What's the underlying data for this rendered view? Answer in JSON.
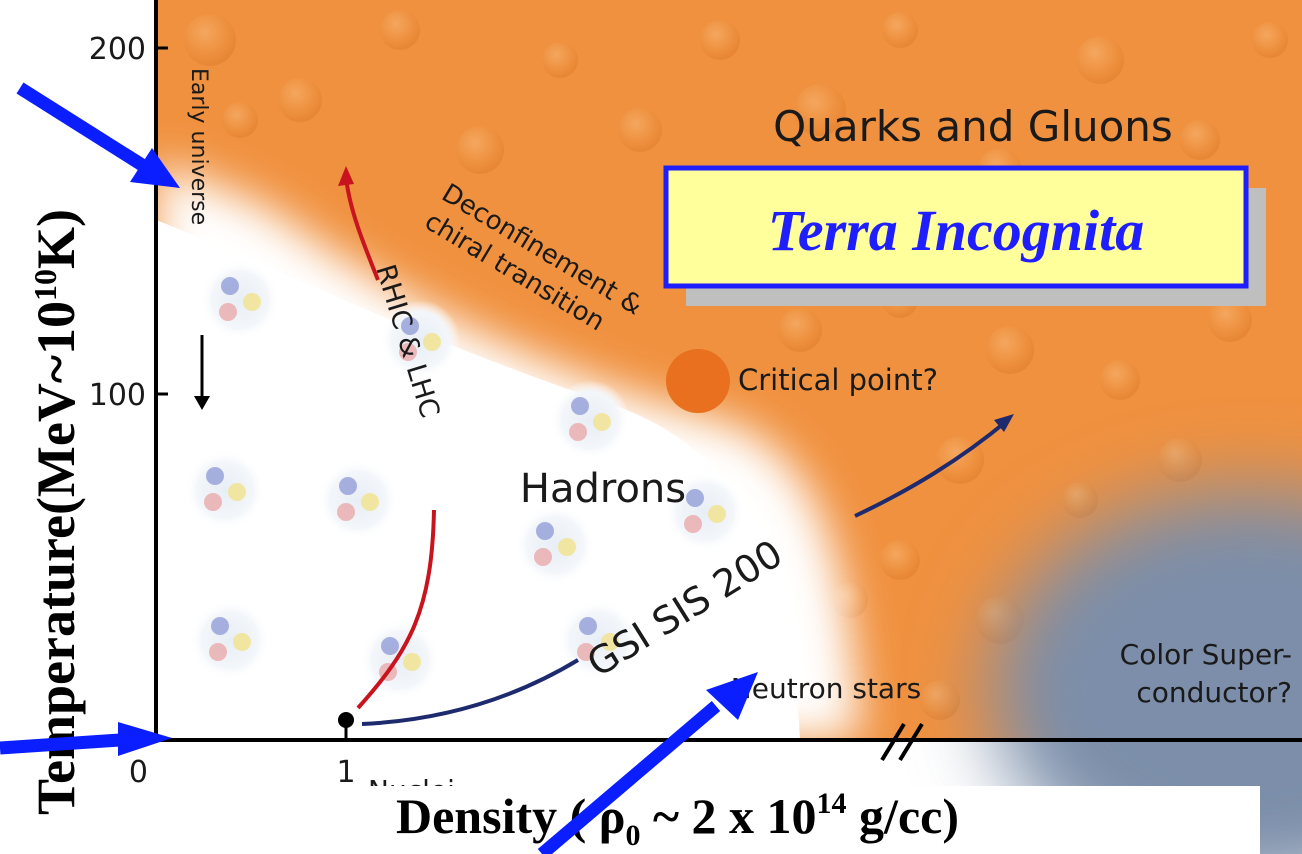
{
  "axes": {
    "y_ticks": [
      {
        "value": 200,
        "label": "200"
      },
      {
        "value": 100,
        "label": "100"
      },
      {
        "value": 0,
        "label": "0"
      }
    ],
    "x_ticks": [
      {
        "value": 1,
        "label": "1"
      }
    ],
    "y_title": "Temperature(MeV~10",
    "y_title_exp": "10",
    "y_title_end": "K)",
    "x_title_pre": "Density ( ρ",
    "x_title_sub": "0",
    "x_title_mid": " ~ 2 x 10",
    "x_title_sup": "14",
    "x_title_end": " g/cc)",
    "x_partial_label": "Nuclei"
  },
  "regions": {
    "qgp": "Quarks and Gluons",
    "hadrons": "Hadrons",
    "csc_line1": "Color Super-",
    "csc_line2": "conductor?"
  },
  "annotations": {
    "terra": "Terra Incognita",
    "deconf_line1": "Deconfinement &",
    "deconf_line2": "chiral transition",
    "critical_point": "Critical point?",
    "neutron_stars": "Neutron stars",
    "early_universe": "Early universe"
  },
  "trajectories": {
    "rhic": "RHIC & LHC",
    "gsi": "GSI SIS 200"
  },
  "colors": {
    "orange": "#f0913f",
    "critical_point": "#e8701e",
    "rhic_line": "#c8141e",
    "gsi_line": "#1e2a6e",
    "arrows": "#0a1eff",
    "terra_fill": "#ffff9c",
    "terra_border": "#1e1eff",
    "terra_text": "#1e1eff",
    "csc": "#7b8ea9"
  }
}
